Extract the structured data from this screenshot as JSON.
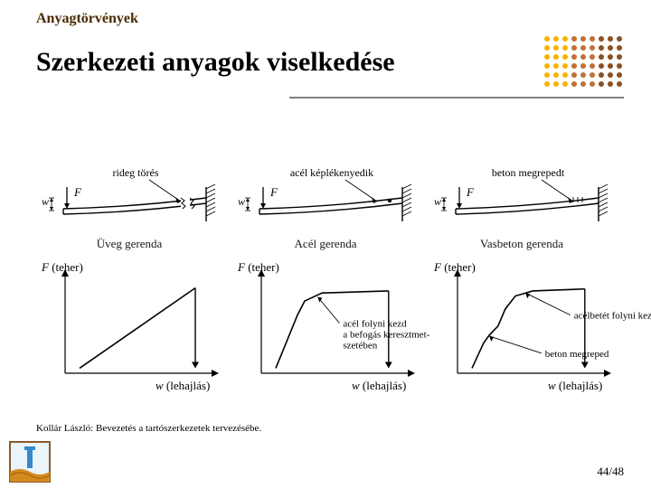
{
  "header": {
    "pretitle": "Anyagtörvények",
    "title": "Szerkezeti anyagok viselkedése"
  },
  "footer": {
    "caption": "Kollár László: Bevezetés a tartószerkezetek tervezésébe.",
    "page_number": "44/48"
  },
  "dotgrid": {
    "rows": 6,
    "cols": 9,
    "spacing": 10,
    "radius": 3,
    "colors": [
      "#f4b400",
      "#f4b400",
      "#f4b400",
      "#c0703a",
      "#c0703a",
      "#c0703a",
      "#8a5020",
      "#8a5020",
      "#8a5020",
      "#f4b400",
      "#f4b400",
      "#f4b400",
      "#c0703a",
      "#c0703a",
      "#c0703a",
      "#8a5020",
      "#8a5020",
      "#8a5020",
      "#f4b400",
      "#f4b400",
      "#f4b400",
      "#c0703a",
      "#c0703a",
      "#c0703a",
      "#8a5020",
      "#8a5020",
      "#8a5020",
      "#f4b400",
      "#f4b400",
      "#f4b400",
      "#c0703a",
      "#c0703a",
      "#c0703a",
      "#8a5020",
      "#8a5020",
      "#8a5020",
      "#f4b400",
      "#f4b400",
      "#f4b400",
      "#c0703a",
      "#c0703a",
      "#c0703a",
      "#8a5020",
      "#8a5020",
      "#8a5020",
      "#f4b400",
      "#f4b400",
      "#f4b400",
      "#c0703a",
      "#c0703a",
      "#c0703a",
      "#8a5020",
      "#8a5020",
      "#8a5020"
    ]
  },
  "beams": {
    "common": {
      "F_label": "F",
      "w_label": "w",
      "stroke_color": "#000000",
      "line_width": 1.4
    },
    "panels": [
      {
        "title": "Üveg gerenda",
        "top_annotation": "rideg törés",
        "break": true,
        "plastic_hinge": false,
        "crack": false
      },
      {
        "title": "Acél gerenda",
        "top_annotation": "acél képlékenyedik",
        "break": false,
        "plastic_hinge": true,
        "crack": false
      },
      {
        "title": "Vasbeton gerenda",
        "top_annotation": "beton megrepedt",
        "break": false,
        "plastic_hinge": false,
        "crack": true
      }
    ]
  },
  "curves": {
    "axis": {
      "y_label_italic": "F",
      "y_label_plain": " (teher)",
      "x_label_italic": "w",
      "x_label_plain": " (lehajlás)",
      "xlim": [
        0,
        100
      ],
      "ylim": [
        0,
        100
      ],
      "stroke_color": "#000000",
      "axis_width": 1.2
    },
    "series": [
      {
        "points": [
          [
            10,
            95
          ],
          [
            90,
            15
          ]
        ],
        "drop_at_end": true,
        "drop_to_y": 95,
        "annotations": []
      },
      {
        "points": [
          [
            10,
            95
          ],
          [
            25,
            42
          ],
          [
            30,
            28
          ],
          [
            42,
            20
          ],
          [
            88,
            18
          ]
        ],
        "drop_at_end": true,
        "drop_to_y": 95,
        "annotations": [
          {
            "text_lines": [
              "acél folyni kezd",
              "a befogás keresztmet-",
              "szetében"
            ],
            "arrow_from": [
              54,
              50
            ],
            "arrow_to": [
              39,
              24
            ]
          }
        ]
      },
      {
        "points": [
          [
            10,
            95
          ],
          [
            18,
            70
          ],
          [
            22,
            62
          ],
          [
            28,
            53
          ],
          [
            33,
            36
          ],
          [
            40,
            23
          ],
          [
            52,
            18
          ],
          [
            88,
            16
          ]
        ],
        "drop_at_end": true,
        "drop_to_y": 95,
        "annotations": [
          {
            "text_lines": [
              "acélbetét folyni kezd"
            ],
            "arrow_from": [
              78,
              42
            ],
            "arrow_to": [
              47,
              20
            ]
          },
          {
            "text_lines": [
              "beton megreped"
            ],
            "arrow_from": [
              58,
              80
            ],
            "arrow_to": [
              22,
              63
            ]
          }
        ]
      }
    ],
    "curve_color": "#000000",
    "curve_width": 1.6,
    "arrow_color": "#000000"
  },
  "logo": {
    "border_color": "#8a5a2a",
    "wave_color": "#d38b1e",
    "sky_color": "#e9f4fb",
    "pillar_color": "#3a88c7"
  }
}
